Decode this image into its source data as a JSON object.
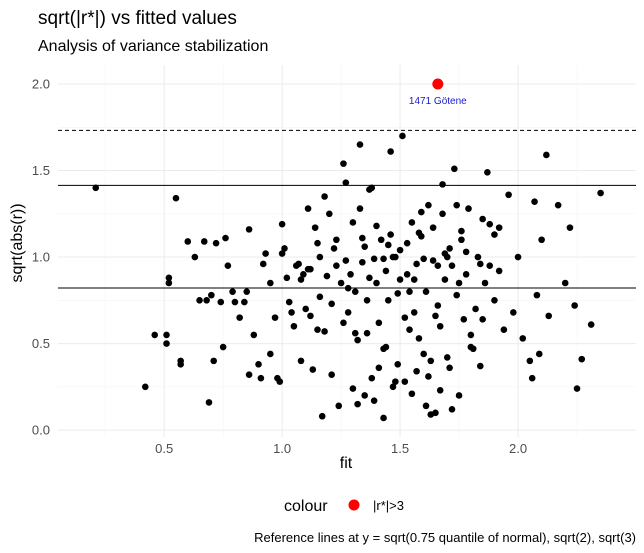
{
  "chart_data": {
    "type": "scatter",
    "title": "sqrt(|r*|) vs fitted values",
    "subtitle": "Analysis of variance stabilization",
    "xlabel": "fit",
    "ylabel": "sqrt(abs(r))",
    "xlim": [
      0.05,
      2.5
    ],
    "ylim": [
      -0.04,
      2.11
    ],
    "x_ticks": [
      0.5,
      1.0,
      1.5,
      2.0
    ],
    "y_ticks": [
      0.0,
      0.5,
      1.0,
      1.5,
      2.0
    ],
    "x_tick_labels": [
      "0.5",
      "1.0",
      "1.5",
      "2.0"
    ],
    "y_tick_labels": [
      "0.0",
      "0.5",
      "1.0",
      "1.5",
      "2.0"
    ],
    "grid": true,
    "legend": {
      "title": "colour",
      "position": "bottom",
      "entries": [
        {
          "label": "|r*|>3",
          "color": "#ff0000"
        }
      ]
    },
    "caption": "Reference lines at y = sqrt(0.75 quantile of normal), sqrt(2), sqrt(3)",
    "reference_lines": [
      {
        "y": 0.821,
        "style": "solid"
      },
      {
        "y": 1.414,
        "style": "solid"
      },
      {
        "y": 1.732,
        "style": "dashed"
      }
    ],
    "highlight": {
      "x": 1.66,
      "y": 2.0,
      "label": "1471 Götene",
      "color": "#ff0000"
    },
    "points": [
      [
        0.21,
        1.4
      ],
      [
        0.42,
        0.25
      ],
      [
        0.46,
        0.55
      ],
      [
        0.51,
        0.55
      ],
      [
        0.51,
        0.5
      ],
      [
        0.52,
        0.85
      ],
      [
        0.52,
        0.88
      ],
      [
        0.55,
        1.34
      ],
      [
        0.57,
        0.4
      ],
      [
        0.57,
        0.38
      ],
      [
        0.6,
        1.09
      ],
      [
        0.63,
        1.0
      ],
      [
        0.65,
        0.75
      ],
      [
        0.67,
        1.09
      ],
      [
        0.68,
        0.75
      ],
      [
        0.69,
        0.16
      ],
      [
        0.7,
        0.78
      ],
      [
        0.71,
        0.4
      ],
      [
        0.72,
        1.08
      ],
      [
        0.74,
        0.74
      ],
      [
        0.75,
        0.48
      ],
      [
        0.76,
        1.11
      ],
      [
        0.77,
        0.95
      ],
      [
        0.79,
        0.8
      ],
      [
        0.8,
        0.74
      ],
      [
        0.82,
        0.65
      ],
      [
        0.84,
        0.74
      ],
      [
        0.85,
        0.8
      ],
      [
        0.86,
        1.16
      ],
      [
        0.86,
        0.32
      ],
      [
        0.88,
        0.55
      ],
      [
        0.9,
        0.38
      ],
      [
        0.91,
        0.3
      ],
      [
        0.92,
        0.96
      ],
      [
        0.93,
        1.02
      ],
      [
        0.95,
        0.85
      ],
      [
        0.97,
        0.65
      ],
      [
        0.98,
        0.3
      ],
      [
        0.99,
        0.28
      ],
      [
        1.0,
        1.19
      ],
      [
        1.01,
        1.05
      ],
      [
        1.02,
        0.88
      ],
      [
        1.03,
        0.74
      ],
      [
        1.05,
        0.6
      ],
      [
        1.06,
        0.95
      ],
      [
        1.07,
        0.96
      ],
      [
        1.08,
        0.87
      ],
      [
        1.09,
        0.9
      ],
      [
        1.1,
        0.7
      ],
      [
        1.11,
        1.28
      ],
      [
        1.12,
        0.93
      ],
      [
        1.13,
        0.35
      ],
      [
        1.14,
        1.17
      ],
      [
        1.15,
        0.58
      ],
      [
        1.16,
        1.0
      ],
      [
        1.17,
        0.08
      ],
      [
        1.18,
        1.35
      ],
      [
        1.19,
        0.89
      ],
      [
        1.2,
        1.25
      ],
      [
        1.21,
        0.73
      ],
      [
        1.22,
        1.05
      ],
      [
        1.23,
        0.95
      ],
      [
        1.24,
        0.14
      ],
      [
        1.25,
        0.85
      ],
      [
        1.26,
        0.62
      ],
      [
        1.27,
        1.43
      ],
      [
        1.28,
        0.68
      ],
      [
        1.29,
        0.9
      ],
      [
        1.3,
        1.2
      ],
      [
        1.31,
        0.8
      ],
      [
        1.32,
        0.15
      ],
      [
        1.33,
        1.65
      ],
      [
        1.34,
        0.97
      ],
      [
        1.35,
        1.06
      ],
      [
        1.36,
        0.56
      ],
      [
        1.37,
        1.39
      ],
      [
        1.38,
        0.3
      ],
      [
        1.39,
        0.99
      ],
      [
        1.4,
        0.85
      ],
      [
        1.41,
        0.62
      ],
      [
        1.42,
        1.1
      ],
      [
        1.43,
        0.47
      ],
      [
        1.44,
        0.92
      ],
      [
        1.45,
        0.75
      ],
      [
        1.46,
        1.13
      ],
      [
        1.47,
        0.25
      ],
      [
        1.48,
        1.0
      ],
      [
        1.49,
        0.79
      ],
      [
        1.5,
        1.04
      ],
      [
        1.51,
        1.7
      ],
      [
        1.52,
        0.65
      ],
      [
        1.53,
        0.9
      ],
      [
        1.54,
        0.58
      ],
      [
        1.55,
        1.2
      ],
      [
        1.56,
        0.87
      ],
      [
        1.57,
        0.34
      ],
      [
        1.58,
        0.53
      ],
      [
        1.59,
        1.12
      ],
      [
        1.6,
        0.99
      ],
      [
        1.61,
        0.8
      ],
      [
        1.62,
        1.3
      ],
      [
        1.63,
        0.4
      ],
      [
        1.64,
        1.17
      ],
      [
        1.65,
        0.1
      ],
      [
        1.66,
        0.95
      ],
      [
        1.67,
        0.6
      ],
      [
        1.68,
        1.25
      ],
      [
        1.69,
        0.87
      ],
      [
        1.7,
        0.42
      ],
      [
        1.71,
        1.05
      ],
      [
        1.72,
        0.95
      ],
      [
        1.73,
        1.51
      ],
      [
        1.74,
        0.78
      ],
      [
        1.75,
        0.2
      ],
      [
        1.76,
        1.1
      ],
      [
        1.77,
        0.64
      ],
      [
        1.78,
        0.9
      ],
      [
        1.79,
        1.28
      ],
      [
        1.8,
        0.55
      ],
      [
        1.81,
        0.47
      ],
      [
        1.82,
        0.7
      ],
      [
        1.83,
        1.0
      ],
      [
        1.84,
        0.37
      ],
      [
        1.85,
        1.22
      ],
      [
        1.86,
        0.85
      ],
      [
        1.87,
        1.49
      ],
      [
        1.88,
        0.95
      ],
      [
        1.9,
        0.75
      ],
      [
        1.92,
        1.17
      ],
      [
        1.94,
        0.58
      ],
      [
        1.96,
        1.36
      ],
      [
        1.98,
        0.68
      ],
      [
        2.0,
        1.0
      ],
      [
        2.02,
        0.53
      ],
      [
        2.05,
        0.4
      ],
      [
        2.06,
        0.3
      ],
      [
        2.07,
        1.32
      ],
      [
        2.08,
        0.78
      ],
      [
        2.09,
        0.44
      ],
      [
        2.1,
        1.1
      ],
      [
        2.12,
        1.59
      ],
      [
        2.13,
        0.66
      ],
      [
        2.17,
        1.3
      ],
      [
        2.2,
        0.85
      ],
      [
        2.22,
        1.17
      ],
      [
        2.24,
        0.72
      ],
      [
        2.25,
        0.24
      ],
      [
        2.27,
        0.41
      ],
      [
        2.31,
        0.61
      ],
      [
        2.35,
        1.37
      ],
      [
        1.46,
        1.61
      ],
      [
        1.43,
        0.07
      ],
      [
        1.55,
        0.21
      ],
      [
        1.63,
        0.09
      ],
      [
        1.72,
        0.12
      ],
      [
        1.68,
        1.42
      ],
      [
        1.26,
        1.54
      ],
      [
        1.15,
        1.08
      ],
      [
        1.38,
        1.4
      ],
      [
        1.58,
        1.14
      ],
      [
        1.49,
        0.38
      ],
      [
        1.35,
        0.2
      ],
      [
        1.3,
        0.24
      ],
      [
        1.76,
        1.15
      ],
      [
        0.95,
        0.44
      ],
      [
        1.08,
        0.4
      ],
      [
        1.21,
        0.32
      ],
      [
        1.44,
        0.48
      ],
      [
        1.52,
        0.28
      ],
      [
        1.66,
        0.72
      ],
      [
        1.8,
        0.48
      ],
      [
        1.92,
        0.92
      ],
      [
        1.4,
        1.18
      ],
      [
        1.33,
        1.28
      ],
      [
        1.18,
        0.57
      ],
      [
        1.04,
        0.68
      ],
      [
        1.61,
        0.14
      ],
      [
        1.74,
        1.3
      ],
      [
        1.85,
        0.64
      ],
      [
        1.59,
        1.26
      ],
      [
        1.47,
        1.0
      ],
      [
        1.36,
        0.75
      ],
      [
        1.28,
        0.82
      ],
      [
        1.11,
        0.93
      ],
      [
        1.0,
        1.02
      ],
      [
        1.56,
        0.68
      ],
      [
        1.64,
        0.98
      ],
      [
        1.7,
        1.0
      ],
      [
        1.53,
        1.08
      ],
      [
        1.43,
        0.99
      ],
      [
        1.23,
        1.1
      ],
      [
        1.16,
        0.77
      ],
      [
        1.31,
        0.56
      ],
      [
        1.37,
        0.88
      ],
      [
        1.5,
        0.87
      ],
      [
        1.62,
        0.31
      ],
      [
        1.67,
        0.23
      ],
      [
        1.78,
        1.03
      ],
      [
        1.88,
        1.19
      ],
      [
        1.41,
        0.36
      ],
      [
        1.54,
        0.8
      ],
      [
        1.6,
        0.44
      ],
      [
        1.65,
        0.66
      ],
      [
        1.71,
        0.36
      ],
      [
        1.12,
        0.66
      ],
      [
        1.27,
        0.98
      ],
      [
        1.34,
        1.11
      ],
      [
        1.45,
        1.07
      ],
      [
        1.57,
        0.96
      ],
      [
        1.69,
        1.02
      ],
      [
        1.75,
        0.85
      ],
      [
        1.84,
        0.96
      ],
      [
        1.9,
        1.13
      ],
      [
        1.48,
        0.28
      ],
      [
        1.39,
        0.17
      ],
      [
        1.32,
        0.52
      ]
    ]
  }
}
